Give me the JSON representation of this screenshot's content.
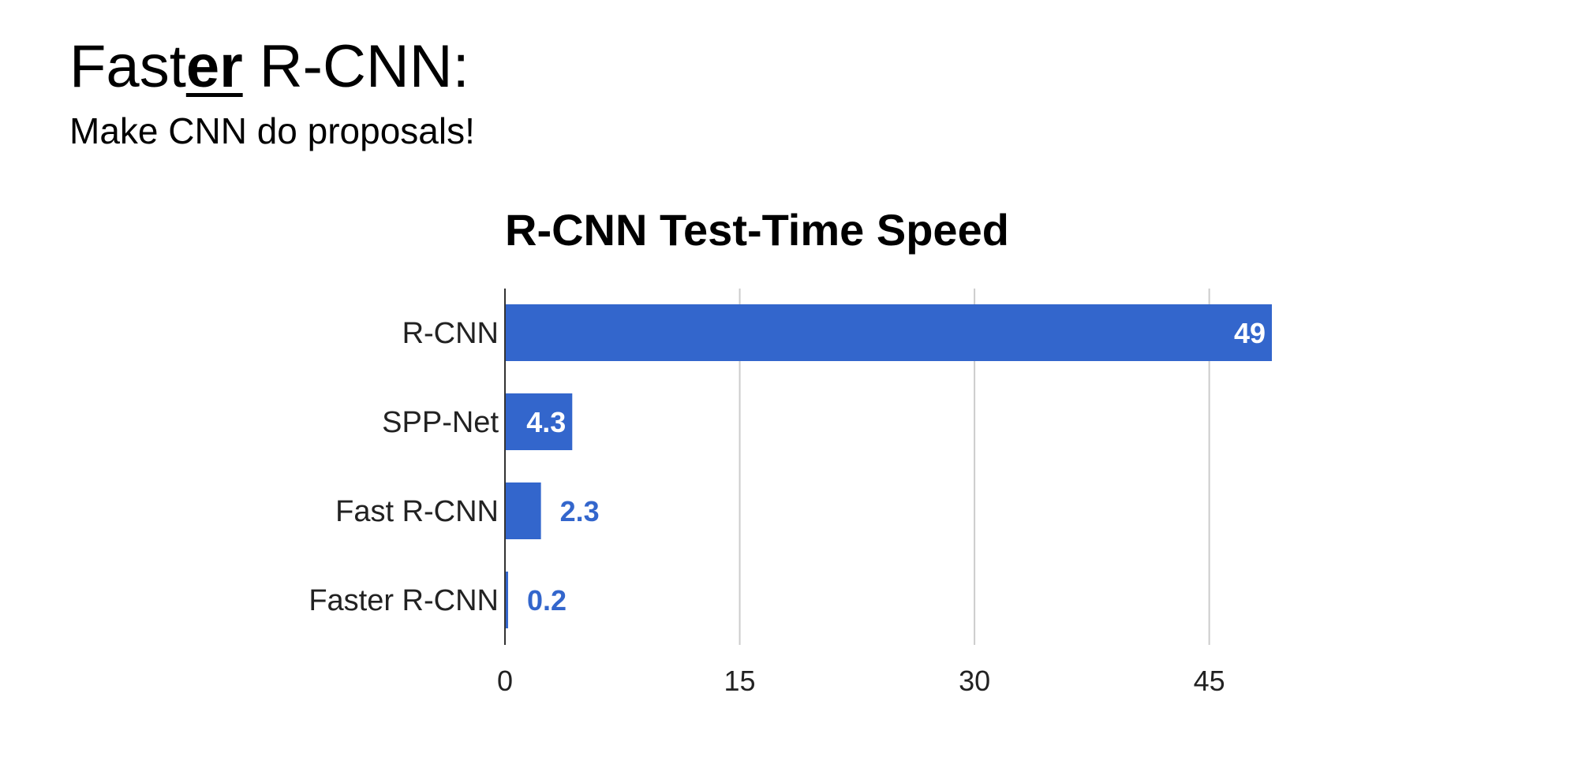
{
  "slide": {
    "title_prefix": "Fast",
    "title_emphasis": "er",
    "title_suffix": " R-CNN:",
    "subtitle": "Make CNN do proposals!"
  },
  "colors": {
    "bar": "#3366cc",
    "label_inside": "#ffffff",
    "label_outside": "#3366cc",
    "grid": "#cccccc",
    "axis": "#333333",
    "tick_text": "#222222",
    "title_text": "#000000"
  },
  "chart_data": {
    "type": "bar",
    "orientation": "horizontal",
    "title": "R-CNN Test-Time Speed",
    "xlabel": "",
    "ylabel": "",
    "categories": [
      "R-CNN",
      "SPP-Net",
      "Fast R-CNN",
      "Faster R-CNN"
    ],
    "values": [
      49,
      4.3,
      2.3,
      0.2
    ],
    "data_labels": [
      "49",
      "4.3",
      "2.3",
      "0.2"
    ],
    "xlim": [
      0,
      49
    ],
    "xticks": [
      0,
      15,
      30,
      45
    ],
    "grid": true,
    "legend": "none"
  }
}
